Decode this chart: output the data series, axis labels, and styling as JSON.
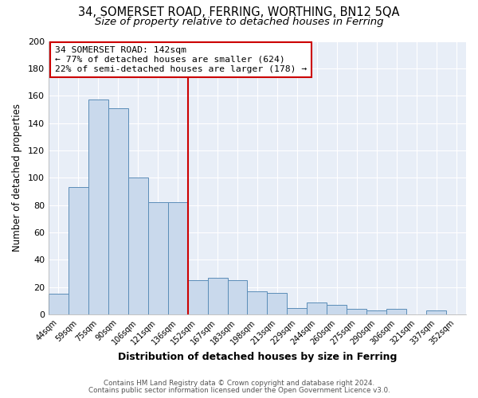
{
  "title1": "34, SOMERSET ROAD, FERRING, WORTHING, BN12 5QA",
  "title2": "Size of property relative to detached houses in Ferring",
  "xlabel": "Distribution of detached houses by size in Ferring",
  "ylabel": "Number of detached properties",
  "bar_labels": [
    "44sqm",
    "59sqm",
    "75sqm",
    "90sqm",
    "106sqm",
    "121sqm",
    "136sqm",
    "152sqm",
    "167sqm",
    "183sqm",
    "198sqm",
    "213sqm",
    "229sqm",
    "244sqm",
    "260sqm",
    "275sqm",
    "290sqm",
    "306sqm",
    "321sqm",
    "337sqm",
    "352sqm"
  ],
  "bar_values": [
    15,
    93,
    157,
    151,
    100,
    82,
    82,
    25,
    27,
    25,
    17,
    16,
    5,
    9,
    7,
    4,
    3,
    4,
    0,
    3,
    0
  ],
  "bar_color": "#c9d9ec",
  "bar_edge_color": "#5b8db8",
  "ylim": [
    0,
    200
  ],
  "yticks": [
    0,
    20,
    40,
    60,
    80,
    100,
    120,
    140,
    160,
    180,
    200
  ],
  "vline_x": 6.5,
  "vline_color": "#cc0000",
  "annotation_title": "34 SOMERSET ROAD: 142sqm",
  "annotation_line1": "← 77% of detached houses are smaller (624)",
  "annotation_line2": "22% of semi-detached houses are larger (178) →",
  "annotation_box_color": "#ffffff",
  "annotation_box_edge": "#cc0000",
  "footer1": "Contains HM Land Registry data © Crown copyright and database right 2024.",
  "footer2": "Contains public sector information licensed under the Open Government Licence v3.0.",
  "bg_color": "#ffffff",
  "plot_bg_color": "#e8eef7",
  "title1_fontsize": 10.5,
  "title2_fontsize": 9.5,
  "grid_color": "#ffffff"
}
